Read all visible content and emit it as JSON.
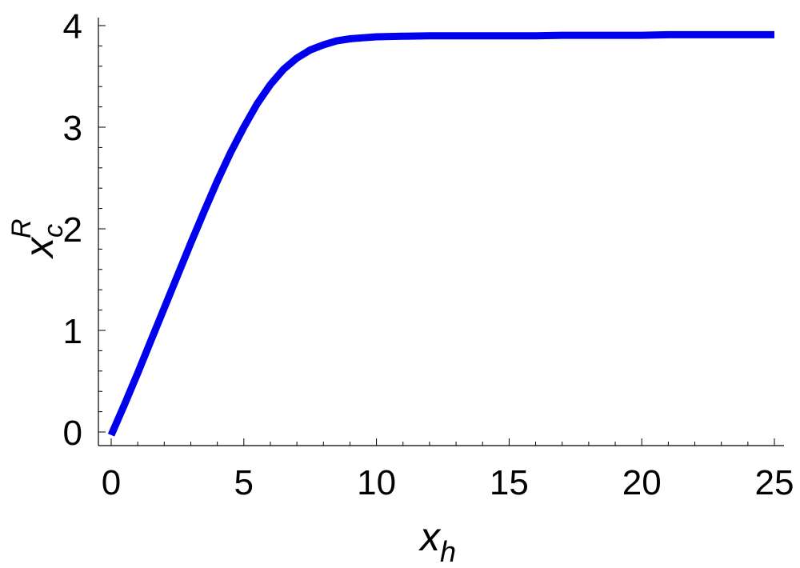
{
  "chart_data": {
    "type": "line",
    "title": "",
    "xlabel": {
      "main": "x",
      "sub": "h"
    },
    "ylabel": {
      "main": "x",
      "sub": "c",
      "sup": "R"
    },
    "xlim": [
      0,
      25
    ],
    "ylim": [
      0,
      4
    ],
    "x_ticks": [
      0,
      5,
      10,
      15,
      20,
      25
    ],
    "y_ticks": [
      0,
      1,
      2,
      3,
      4
    ],
    "grid": false,
    "legend": "none",
    "series": [
      {
        "color": "#0000ee",
        "x": [
          0,
          0.5,
          1,
          1.5,
          2,
          2.5,
          3,
          3.5,
          4,
          4.5,
          5,
          5.5,
          6,
          6.5,
          7,
          7.5,
          8,
          8.5,
          9,
          9.5,
          10,
          11,
          12,
          13,
          14,
          15,
          16,
          17,
          18,
          19,
          20,
          21,
          22,
          23,
          24,
          25
        ],
        "y": [
          -0.03,
          0.27,
          0.58,
          0.9,
          1.22,
          1.54,
          1.86,
          2.17,
          2.47,
          2.75,
          3.0,
          3.23,
          3.42,
          3.57,
          3.68,
          3.76,
          3.81,
          3.85,
          3.87,
          3.88,
          3.89,
          3.895,
          3.9,
          3.9,
          3.9,
          3.9,
          3.9,
          3.905,
          3.905,
          3.905,
          3.905,
          3.91,
          3.91,
          3.91,
          3.91,
          3.91
        ]
      }
    ]
  }
}
